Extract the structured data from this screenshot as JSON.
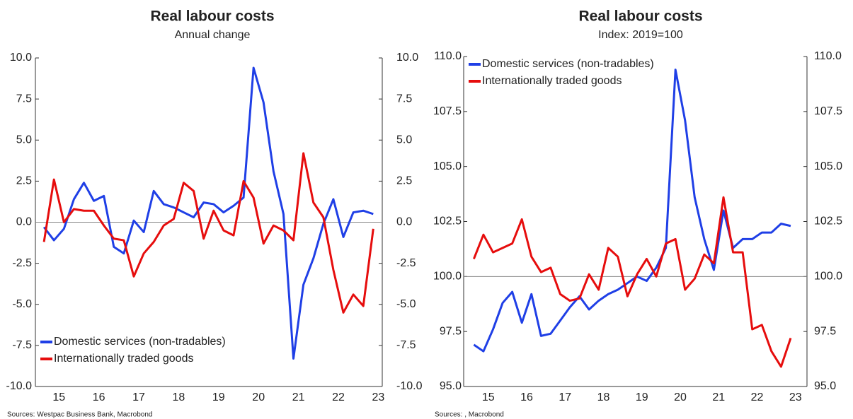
{
  "chart_data": [
    {
      "type": "line",
      "title": "Real labour costs",
      "subtitle": "Annual change",
      "source": "Sources: Westpac Business Bank, Macrobond",
      "x": [
        15.125,
        15.375,
        15.625,
        15.875,
        16.125,
        16.375,
        16.625,
        16.875,
        17.125,
        17.375,
        17.625,
        17.875,
        18.125,
        18.375,
        18.625,
        18.875,
        19.125,
        19.375,
        19.625,
        19.875,
        20.125,
        20.375,
        20.625,
        20.875,
        21.125,
        21.375,
        21.625,
        21.875,
        22.125,
        22.375,
        22.625,
        22.875,
        23.125,
        23.375
      ],
      "xlim": [
        14.91,
        23.6
      ],
      "xticks": [
        {
          "value": 15.5,
          "label": "15"
        },
        {
          "value": 16.5,
          "label": "16"
        },
        {
          "value": 17.5,
          "label": "17"
        },
        {
          "value": 18.5,
          "label": "18"
        },
        {
          "value": 19.5,
          "label": "19"
        },
        {
          "value": 20.5,
          "label": "20"
        },
        {
          "value": 21.5,
          "label": "21"
        },
        {
          "value": 22.5,
          "label": "22"
        },
        {
          "value": 23.5,
          "label": "23"
        }
      ],
      "ylim": [
        -10,
        10
      ],
      "yticks": [
        {
          "value": 10,
          "label": "10.0"
        },
        {
          "value": 7.5,
          "label": "7.5"
        },
        {
          "value": 5,
          "label": "5.0"
        },
        {
          "value": 2.5,
          "label": "2.5"
        },
        {
          "value": 0,
          "label": "0.0"
        },
        {
          "value": -2.5,
          "label": "-2.5"
        },
        {
          "value": -5,
          "label": "-5.0"
        },
        {
          "value": -7.5,
          "label": "-7.5"
        },
        {
          "value": -10,
          "label": "-10.0"
        }
      ],
      "reference_line": 0,
      "legend": "lower left",
      "series": [
        {
          "name": "Domestic services (non-tradables)",
          "color": "#1f3fe6",
          "values": [
            -0.3,
            -1.1,
            -0.4,
            1.4,
            2.4,
            1.3,
            1.6,
            -1.5,
            -1.9,
            0.1,
            -0.6,
            1.9,
            1.1,
            0.9,
            0.6,
            0.3,
            1.2,
            1.1,
            0.6,
            1.0,
            1.5,
            9.4,
            7.3,
            3.1,
            0.5,
            -8.3,
            -3.8,
            -2.2,
            -0.1,
            1.4,
            -0.9,
            0.6,
            0.7,
            0.5
          ]
        },
        {
          "name": "Internationally traded goods",
          "color": "#e60d0d",
          "values": [
            -1.2,
            2.6,
            0.0,
            0.8,
            0.7,
            0.7,
            -0.2,
            -1.0,
            -1.1,
            -3.3,
            -1.9,
            -1.2,
            -0.2,
            0.2,
            2.4,
            1.9,
            -1.0,
            0.7,
            -0.5,
            -0.8,
            2.5,
            1.5,
            -1.3,
            -0.2,
            -0.5,
            -1.1,
            4.2,
            1.2,
            0.3,
            -2.9,
            -5.5,
            -4.4,
            -5.1,
            -0.4
          ]
        }
      ]
    },
    {
      "type": "line",
      "title": "Real labour costs",
      "subtitle": "Index: 2019=100",
      "source": "Sources: , Macrobond",
      "x": [
        15.125,
        15.375,
        15.625,
        15.875,
        16.125,
        16.375,
        16.625,
        16.875,
        17.125,
        17.375,
        17.625,
        17.875,
        18.125,
        18.375,
        18.625,
        18.875,
        19.125,
        19.375,
        19.625,
        19.875,
        20.125,
        20.375,
        20.625,
        20.875,
        21.125,
        21.375,
        21.625,
        21.875,
        22.125,
        22.375,
        22.625,
        22.875,
        23.125,
        23.375
      ],
      "xlim": [
        14.86,
        23.8
      ],
      "xticks": [
        {
          "value": 15.5,
          "label": "15"
        },
        {
          "value": 16.5,
          "label": "16"
        },
        {
          "value": 17.5,
          "label": "17"
        },
        {
          "value": 18.5,
          "label": "18"
        },
        {
          "value": 19.5,
          "label": "19"
        },
        {
          "value": 20.5,
          "label": "20"
        },
        {
          "value": 21.5,
          "label": "21"
        },
        {
          "value": 22.5,
          "label": "22"
        },
        {
          "value": 23.5,
          "label": "23"
        }
      ],
      "ylim": [
        95,
        110
      ],
      "yticks": [
        {
          "value": 110,
          "label": "110.0"
        },
        {
          "value": 107.5,
          "label": "107.5"
        },
        {
          "value": 105,
          "label": "105.0"
        },
        {
          "value": 102.5,
          "label": "102.5"
        },
        {
          "value": 100,
          "label": "100.0"
        },
        {
          "value": 97.5,
          "label": "97.5"
        },
        {
          "value": 95,
          "label": "95.0"
        }
      ],
      "reference_line": 100,
      "legend": "upper left",
      "series": [
        {
          "name": "Domestic services (non-tradables)",
          "color": "#1f3fe6",
          "values": [
            96.9,
            96.6,
            97.6,
            98.8,
            99.3,
            97.9,
            99.2,
            97.3,
            97.4,
            98.0,
            98.6,
            99.1,
            98.5,
            98.9,
            99.2,
            99.4,
            99.7,
            100.0,
            99.8,
            100.4,
            101.3,
            109.4,
            107.1,
            103.6,
            101.7,
            100.3,
            103.0,
            101.3,
            101.7,
            101.7,
            102.0,
            102.0,
            102.4,
            102.3
          ]
        },
        {
          "name": "Internationally traded goods",
          "color": "#e60d0d",
          "values": [
            100.8,
            101.9,
            101.1,
            101.3,
            101.5,
            102.6,
            100.9,
            100.2,
            100.4,
            99.2,
            98.9,
            99.0,
            100.1,
            99.4,
            101.3,
            100.9,
            99.1,
            100.1,
            100.8,
            100.0,
            101.5,
            101.7,
            99.4,
            99.9,
            101.0,
            100.6,
            103.6,
            101.1,
            101.1,
            97.6,
            97.8,
            96.6,
            95.9,
            97.2
          ]
        }
      ]
    }
  ]
}
